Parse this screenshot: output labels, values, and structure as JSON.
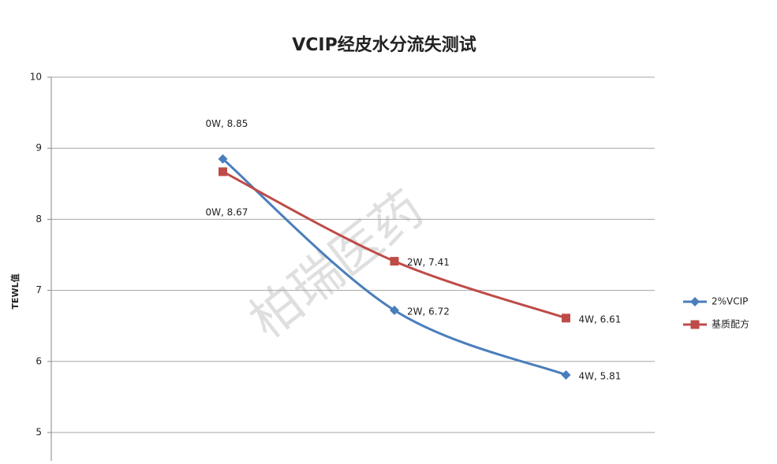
{
  "chart_data": {
    "type": "line",
    "title": "VCIP经皮水分流失测试",
    "y_label": "TEWL值",
    "watermark": "柏瑞医药",
    "categories": [
      "0W",
      "2W",
      "4W"
    ],
    "series": [
      {
        "name": "2%VCIP",
        "color": "#4a7ebb",
        "marker": "diamond",
        "values": [
          8.85,
          6.72,
          5.81
        ],
        "value_labels": [
          "0W, 8.85",
          "2W, 6.72",
          "4W, 5.81"
        ]
      },
      {
        "name": "基质配方",
        "color": "#be4b48",
        "marker": "square",
        "values": [
          8.67,
          7.41,
          6.61
        ],
        "value_labels": [
          "0W, 8.67",
          "2W, 7.41",
          "4W, 6.61"
        ]
      }
    ],
    "ylim": [
      5,
      10
    ],
    "yticks": [
      5,
      6,
      7,
      8,
      9,
      10
    ],
    "grid": true,
    "smooth": true,
    "legend": "right"
  }
}
